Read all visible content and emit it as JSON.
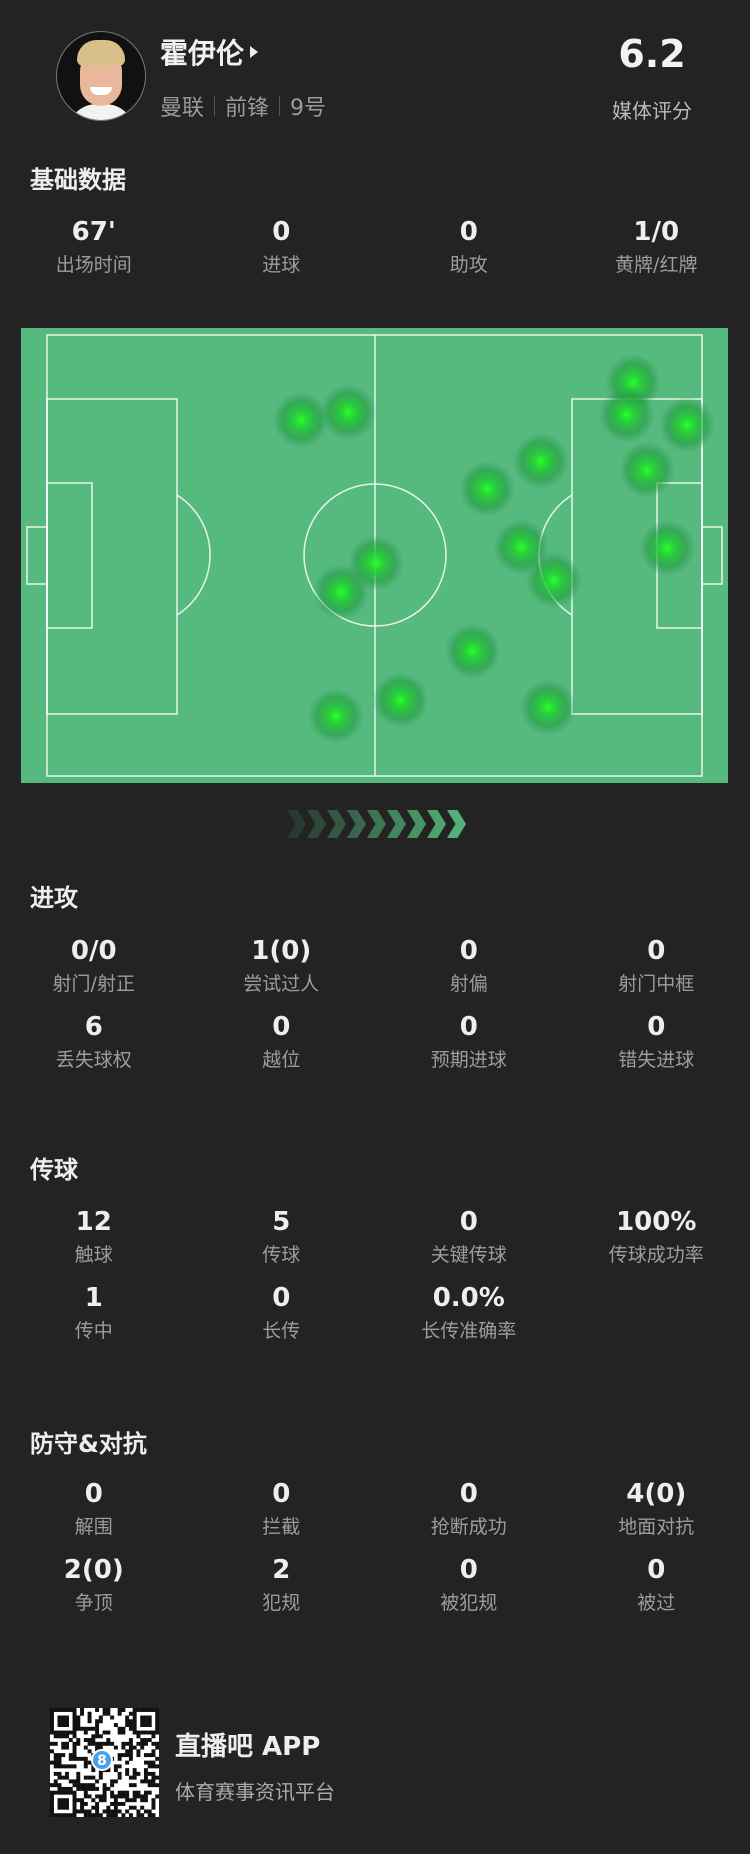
{
  "player": {
    "name": "霍伊伦",
    "team": "曼联",
    "position": "前锋",
    "number": "9号",
    "rating": "6.2",
    "rating_label": "媒体评分"
  },
  "basic": {
    "title": "基础数据",
    "items": [
      {
        "value": "67'",
        "label": "出场时间"
      },
      {
        "value": "0",
        "label": "进球"
      },
      {
        "value": "0",
        "label": "助攻"
      },
      {
        "value": "1/0",
        "label": "黄牌/红牌"
      }
    ]
  },
  "chart_data": {
    "type": "heatmap",
    "description_units": "pitch coordinates 0-100 (x along length, attacking right; y across width)",
    "attack_direction": "right",
    "points": [
      {
        "x": 38.8,
        "y": 19.3
      },
      {
        "x": 46.0,
        "y": 17.5
      },
      {
        "x": 89.5,
        "y": 10.7
      },
      {
        "x": 88.5,
        "y": 18.1
      },
      {
        "x": 97.7,
        "y": 20.4
      },
      {
        "x": 75.4,
        "y": 28.6
      },
      {
        "x": 67.2,
        "y": 34.9
      },
      {
        "x": 91.6,
        "y": 30.6
      },
      {
        "x": 72.4,
        "y": 48.1
      },
      {
        "x": 94.7,
        "y": 48.3
      },
      {
        "x": 77.4,
        "y": 55.6
      },
      {
        "x": 50.2,
        "y": 51.7
      },
      {
        "x": 44.9,
        "y": 58.3
      },
      {
        "x": 65.0,
        "y": 71.7
      },
      {
        "x": 54.0,
        "y": 82.8
      },
      {
        "x": 44.1,
        "y": 86.4
      },
      {
        "x": 76.5,
        "y": 84.4
      }
    ],
    "colors": {
      "pitch": "#56b97e",
      "spot": "#22ee22"
    }
  },
  "attack": {
    "title": "进攻",
    "items": [
      {
        "value": "0/0",
        "label": "射门/射正"
      },
      {
        "value": "1(0)",
        "label": "尝试过人"
      },
      {
        "value": "0",
        "label": "射偏"
      },
      {
        "value": "0",
        "label": "射门中框"
      },
      {
        "value": "6",
        "label": "丢失球权"
      },
      {
        "value": "0",
        "label": "越位"
      },
      {
        "value": "0",
        "label": "预期进球"
      },
      {
        "value": "0",
        "label": "错失进球"
      }
    ]
  },
  "passing": {
    "title": "传球",
    "items": [
      {
        "value": "12",
        "label": "触球"
      },
      {
        "value": "5",
        "label": "传球"
      },
      {
        "value": "0",
        "label": "关键传球"
      },
      {
        "value": "100%",
        "label": "传球成功率"
      },
      {
        "value": "1",
        "label": "传中"
      },
      {
        "value": "0",
        "label": "长传"
      },
      {
        "value": "0.0%",
        "label": "长传准确率"
      }
    ]
  },
  "defense": {
    "title": "防守&对抗",
    "items": [
      {
        "value": "0",
        "label": "解围"
      },
      {
        "value": "0",
        "label": "拦截"
      },
      {
        "value": "0",
        "label": "抢断成功"
      },
      {
        "value": "4(0)",
        "label": "地面对抗"
      },
      {
        "value": "2(0)",
        "label": "争顶"
      },
      {
        "value": "2",
        "label": "犯规"
      },
      {
        "value": "0",
        "label": "被犯规"
      },
      {
        "value": "0",
        "label": "被过"
      }
    ]
  },
  "footer": {
    "app_name": "直播吧 APP",
    "tagline": "体育赛事资讯平台",
    "qr_badge": "8"
  }
}
